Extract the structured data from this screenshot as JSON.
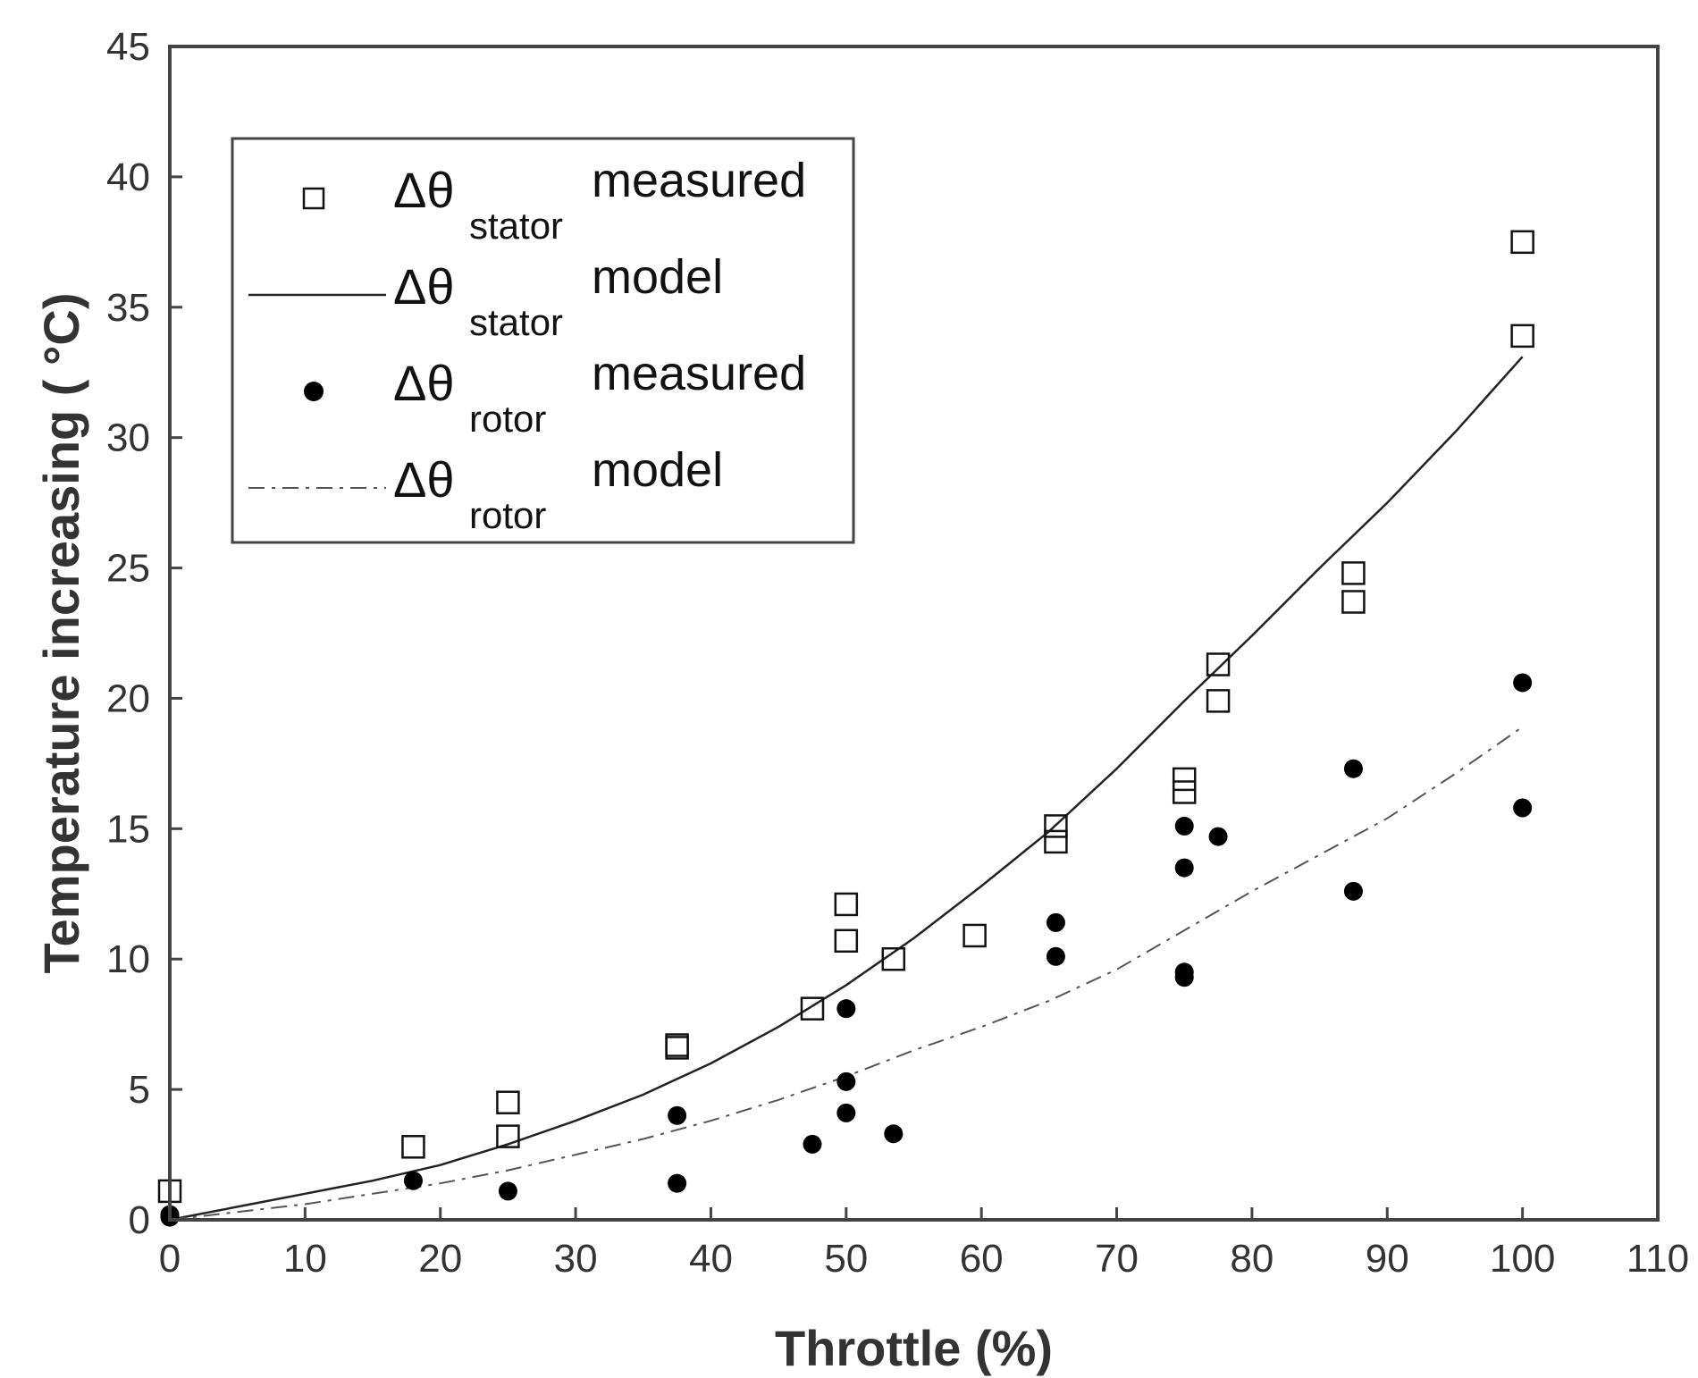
{
  "chart_data": {
    "type": "scatter",
    "title": "",
    "xlabel": "Throttle (%)",
    "ylabel": "Temperature increasing ( °C)",
    "xlim": [
      0,
      110
    ],
    "ylim": [
      0,
      45
    ],
    "xticks": [
      0,
      10,
      20,
      30,
      40,
      50,
      60,
      70,
      80,
      90,
      100,
      110
    ],
    "yticks": [
      0,
      5,
      10,
      15,
      20,
      25,
      30,
      35,
      40,
      45
    ],
    "grid": true,
    "legend_position": "top-left",
    "legend": [
      {
        "symbol": "Δθ",
        "subscript": "stator",
        "suffix": "measured",
        "marker": "square"
      },
      {
        "symbol": "Δθ",
        "subscript": "stator",
        "suffix": "model",
        "marker": "solid-line"
      },
      {
        "symbol": "Δθ",
        "subscript": "rotor",
        "suffix": "measured",
        "marker": "dot"
      },
      {
        "symbol": "Δθ",
        "subscript": "rotor",
        "suffix": "model",
        "marker": "dashdot-line"
      }
    ],
    "series": [
      {
        "name": "stator measured",
        "kind": "scatter",
        "marker": "square",
        "points": [
          [
            0,
            1.1
          ],
          [
            18,
            2.8
          ],
          [
            25,
            4.5
          ],
          [
            25,
            3.2
          ],
          [
            37.5,
            6.7
          ],
          [
            37.5,
            6.6
          ],
          [
            47.5,
            8.1
          ],
          [
            50,
            12.1
          ],
          [
            50,
            10.7
          ],
          [
            53.5,
            10.0
          ],
          [
            59.5,
            10.9
          ],
          [
            65.5,
            15.1
          ],
          [
            65.5,
            14.5
          ],
          [
            75,
            16.9
          ],
          [
            75,
            16.4
          ],
          [
            77.5,
            21.3
          ],
          [
            77.5,
            19.9
          ],
          [
            87.5,
            24.8
          ],
          [
            87.5,
            23.7
          ],
          [
            100,
            37.5
          ],
          [
            100,
            33.9
          ]
        ]
      },
      {
        "name": "stator model",
        "kind": "line",
        "style": "solid",
        "points": [
          [
            0,
            0
          ],
          [
            5,
            0.5
          ],
          [
            10,
            1.0
          ],
          [
            15,
            1.5
          ],
          [
            20,
            2.1
          ],
          [
            25,
            2.9
          ],
          [
            30,
            3.8
          ],
          [
            35,
            4.8
          ],
          [
            40,
            6.0
          ],
          [
            45,
            7.4
          ],
          [
            50,
            9.0
          ],
          [
            55,
            10.8
          ],
          [
            60,
            12.8
          ],
          [
            65,
            14.9
          ],
          [
            70,
            17.3
          ],
          [
            75,
            19.9
          ],
          [
            80,
            22.4
          ],
          [
            85,
            25.0
          ],
          [
            90,
            27.5
          ],
          [
            95,
            30.2
          ],
          [
            100,
            33.1
          ]
        ]
      },
      {
        "name": "rotor measured",
        "kind": "scatter",
        "marker": "dot",
        "points": [
          [
            0,
            0.2
          ],
          [
            0,
            0.1
          ],
          [
            18,
            1.5
          ],
          [
            25,
            1.1
          ],
          [
            37.5,
            4.0
          ],
          [
            37.5,
            1.4
          ],
          [
            47.5,
            2.9
          ],
          [
            50,
            8.1
          ],
          [
            50,
            5.3
          ],
          [
            50,
            4.1
          ],
          [
            53.5,
            3.3
          ],
          [
            65.5,
            11.4
          ],
          [
            65.5,
            10.1
          ],
          [
            75,
            15.1
          ],
          [
            75,
            13.5
          ],
          [
            75,
            9.5
          ],
          [
            75,
            9.3
          ],
          [
            77.5,
            14.7
          ],
          [
            87.5,
            17.3
          ],
          [
            87.5,
            12.6
          ],
          [
            100,
            20.6
          ],
          [
            100,
            15.8
          ]
        ]
      },
      {
        "name": "rotor model",
        "kind": "line",
        "style": "dashdot",
        "points": [
          [
            0,
            0
          ],
          [
            5,
            0.3
          ],
          [
            10,
            0.6
          ],
          [
            15,
            1.0
          ],
          [
            20,
            1.4
          ],
          [
            25,
            1.9
          ],
          [
            30,
            2.5
          ],
          [
            35,
            3.1
          ],
          [
            40,
            3.8
          ],
          [
            45,
            4.6
          ],
          [
            50,
            5.5
          ],
          [
            55,
            6.5
          ],
          [
            60,
            7.4
          ],
          [
            65,
            8.4
          ],
          [
            70,
            9.6
          ],
          [
            75,
            11.1
          ],
          [
            80,
            12.6
          ],
          [
            85,
            14.0
          ],
          [
            90,
            15.4
          ],
          [
            95,
            17.1
          ],
          [
            100,
            18.9
          ]
        ]
      }
    ]
  }
}
